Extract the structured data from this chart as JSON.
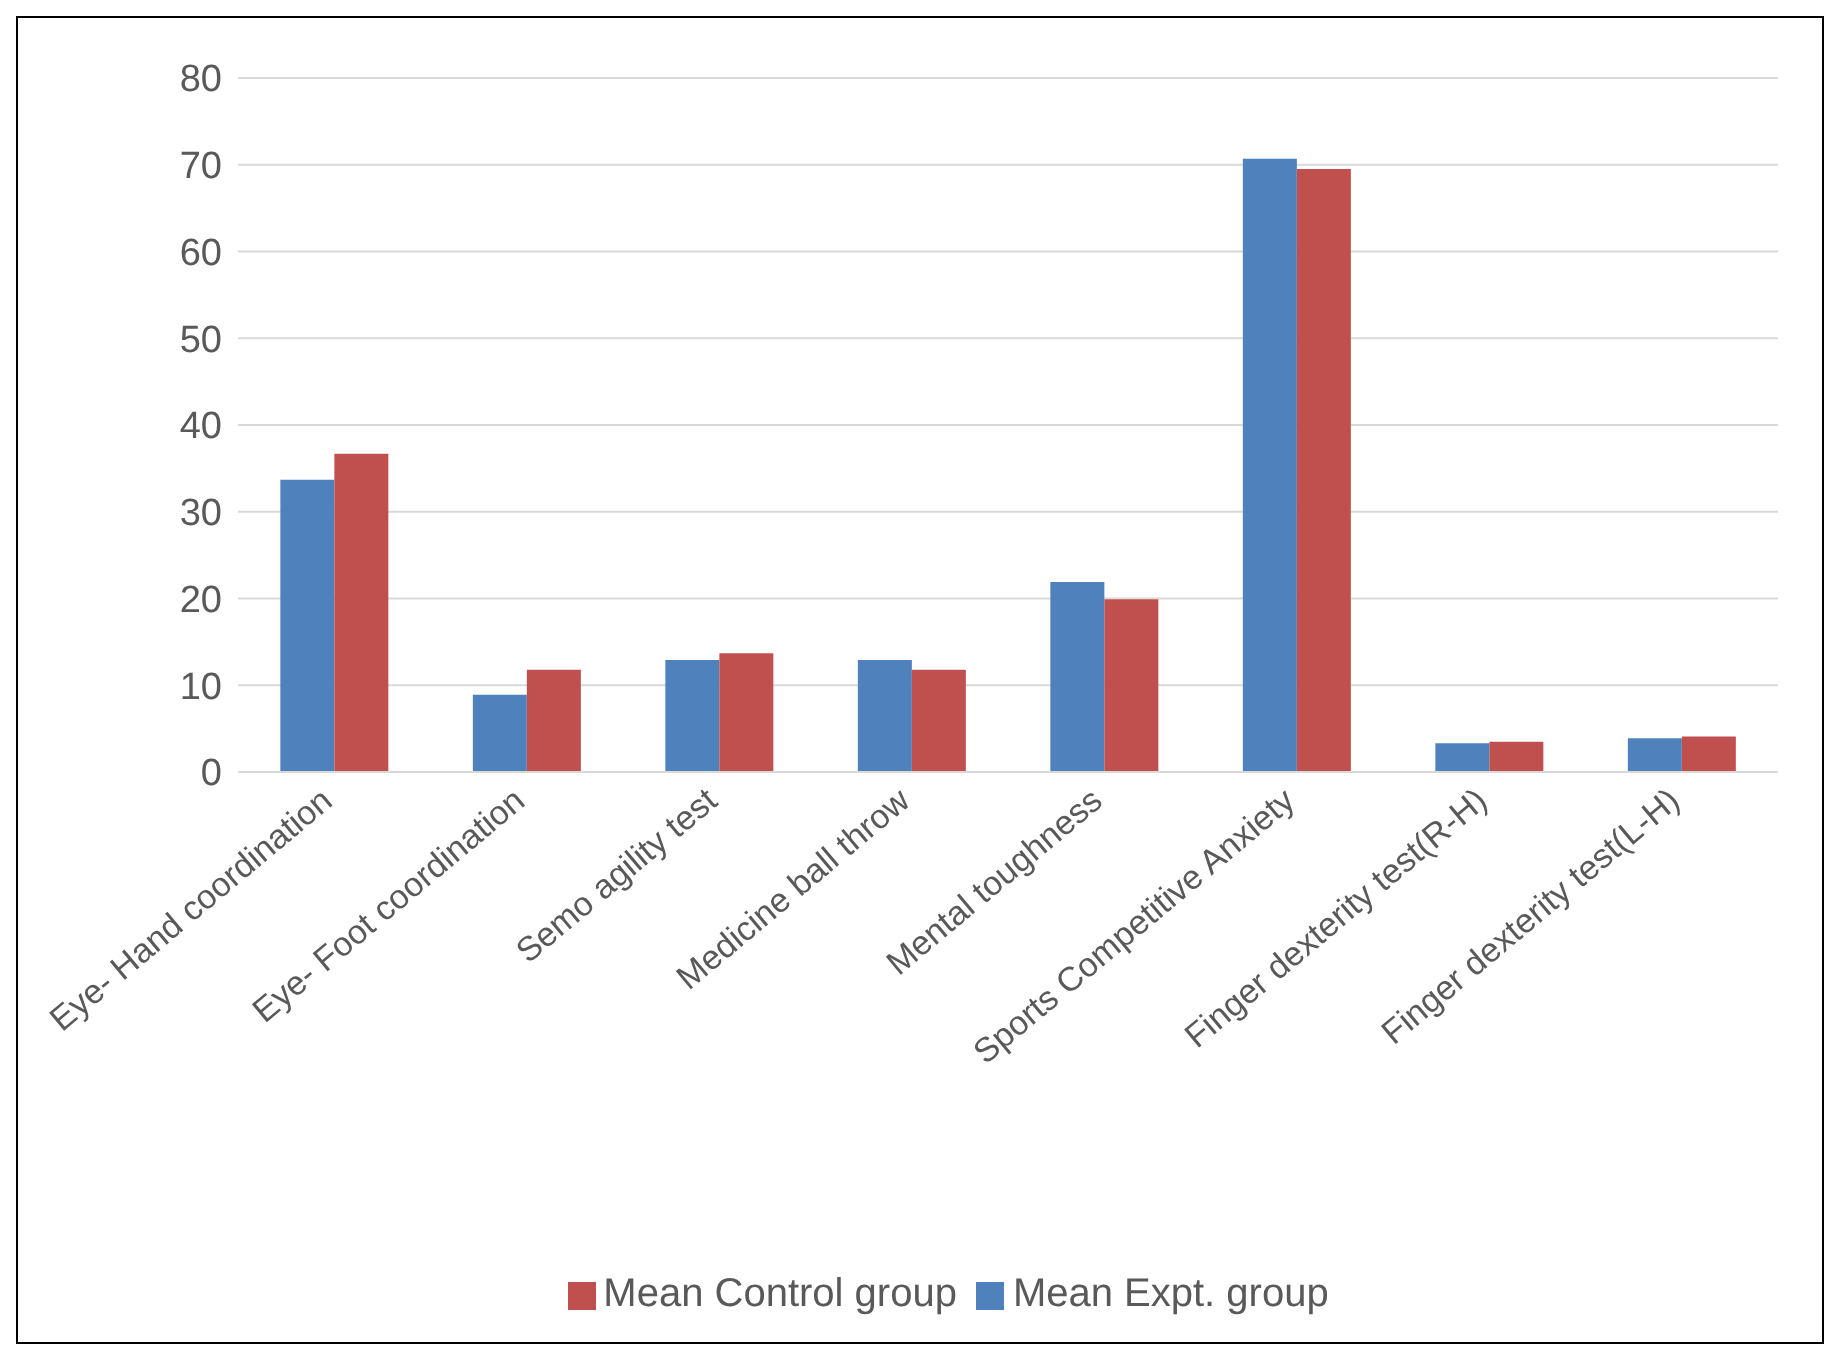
{
  "chart_data": {
    "type": "bar",
    "categories": [
      "Eye- Hand coordination",
      "Eye- Foot coordination",
      "Semo agility test",
      "Medicine ball throw",
      "Mental toughness",
      "Sports Competitive Anxiety",
      "Finger dexterity test(R-H)",
      "Finger dexterity test(L-H)"
    ],
    "series": [
      {
        "name": "Mean Expt. group",
        "color": "#4f81bd",
        "values": [
          33.7,
          8.9,
          12.9,
          12.9,
          21.9,
          70.7,
          3.3,
          3.9
        ]
      },
      {
        "name": "Mean Control group",
        "color": "#c0504d",
        "values": [
          36.7,
          11.8,
          13.7,
          11.8,
          19.9,
          69.5,
          3.5,
          4.1
        ]
      }
    ],
    "ylim": [
      0,
      80
    ],
    "yticks": [
      0,
      10,
      20,
      30,
      40,
      50,
      60,
      70,
      80
    ],
    "grid": "y",
    "legend": "bottom"
  }
}
